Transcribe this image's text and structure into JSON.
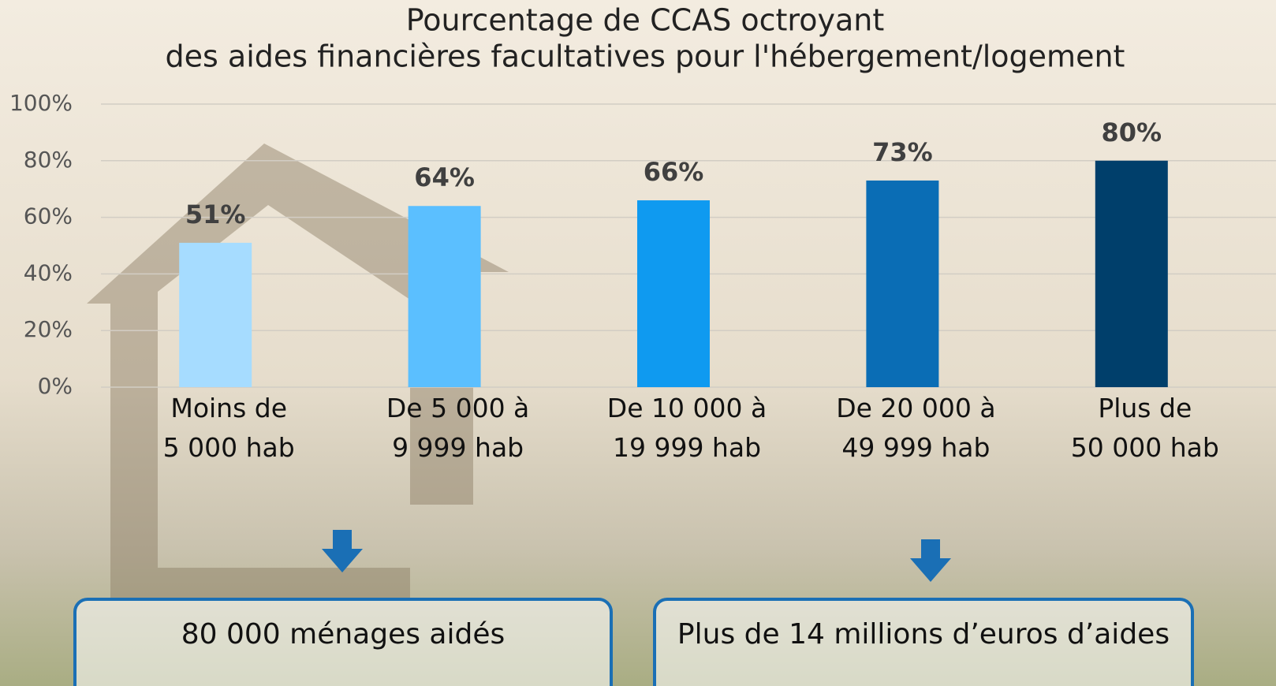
{
  "chart_data": {
    "type": "bar",
    "title": [
      "Pourcentage de CCAS octroyant",
      "des aides financières facultatives pour l'hébergement/logement"
    ],
    "categories": [
      "Moins de\n5 000 hab",
      "De 5 000 à\n9 999 hab",
      "De 10 000 à\n19 999 hab",
      "De 20 000 à\n49 999 hab",
      "Plus de\n50 000 hab"
    ],
    "values": [
      51,
      64,
      66,
      73,
      80
    ],
    "value_labels": [
      "51%",
      "64%",
      "66%",
      "73%",
      "80%"
    ],
    "colors": [
      "#a6dcff",
      "#5bbfff",
      "#0f9af0",
      "#0a6db5",
      "#003f6b"
    ],
    "ylim": [
      0,
      100
    ],
    "yticks": [
      {
        "value": 0,
        "label": "0%"
      },
      {
        "value": 20,
        "label": "20%"
      },
      {
        "value": 40,
        "label": "40%"
      },
      {
        "value": 60,
        "label": "60%"
      },
      {
        "value": 80,
        "label": "80%"
      },
      {
        "value": 100,
        "label": "100%"
      }
    ],
    "grid": true,
    "annotations": [
      "80 000 ménages aidés",
      "Plus de 14 millions d’euros d’aides"
    ]
  }
}
